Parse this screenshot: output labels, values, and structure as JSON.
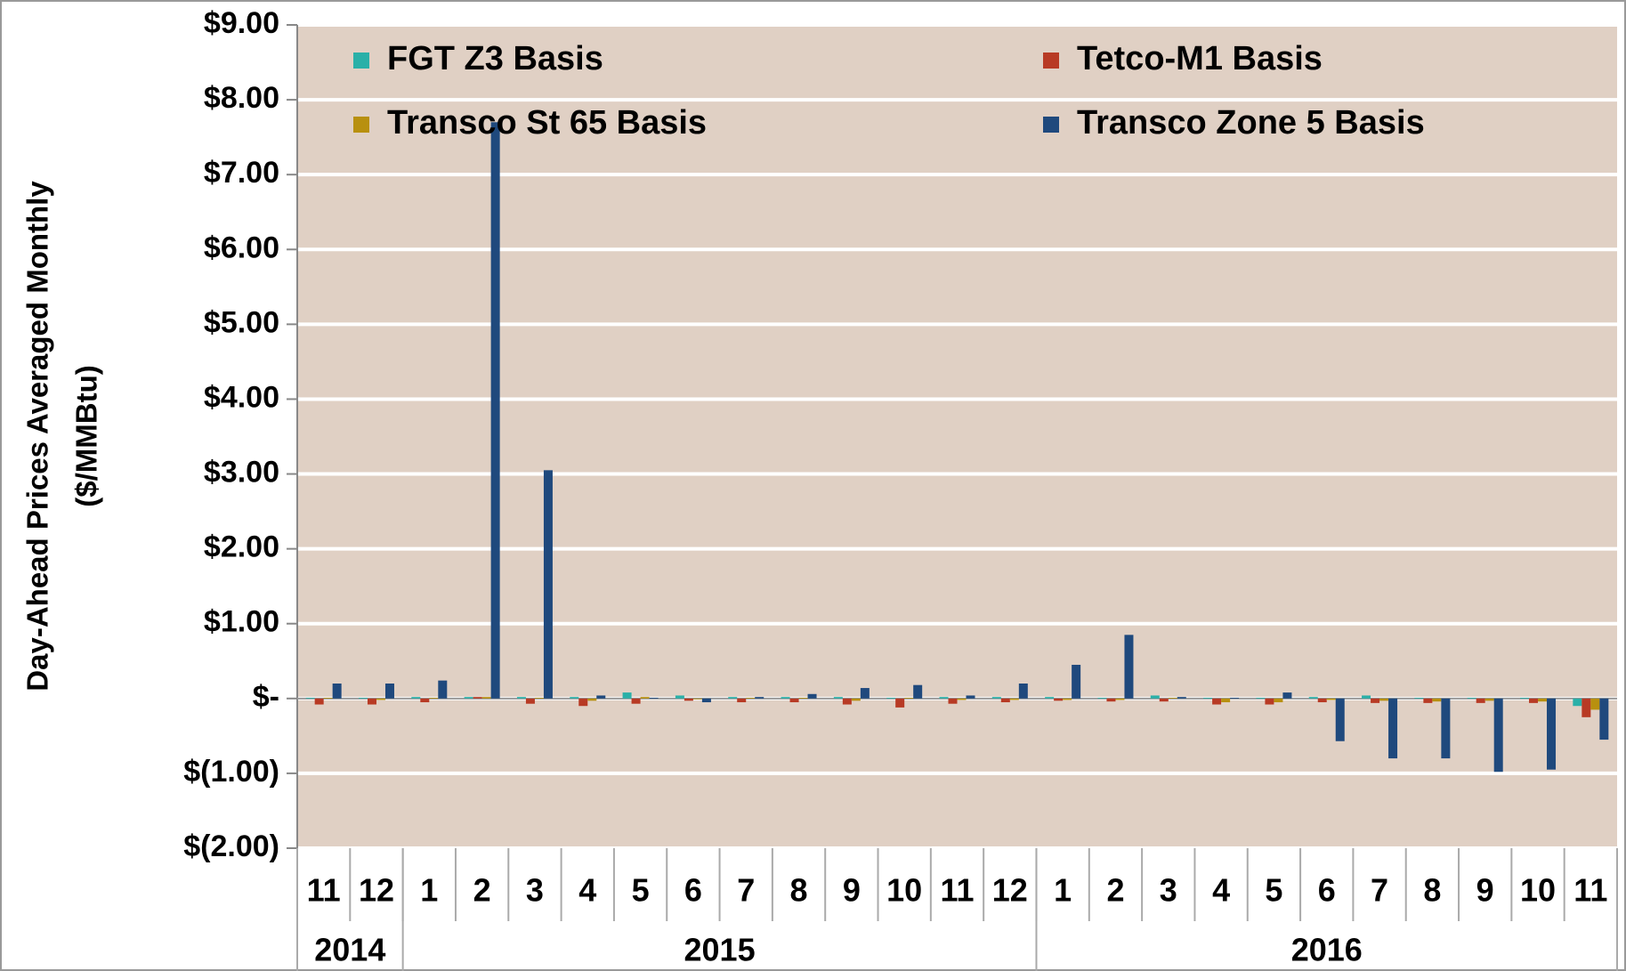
{
  "chart_data": {
    "type": "bar",
    "ylabel": [
      "Day-Ahead Prices Averaged Monthly",
      "($/MMBtu)"
    ],
    "categories": [
      "11",
      "12",
      "1",
      "2",
      "3",
      "4",
      "5",
      "6",
      "7",
      "8",
      "9",
      "10",
      "11",
      "12",
      "1",
      "2",
      "3",
      "4",
      "5",
      "6",
      "7",
      "8",
      "9",
      "10",
      "11"
    ],
    "groups": [
      {
        "label": "2014",
        "count": 2
      },
      {
        "label": "2015",
        "count": 12
      },
      {
        "label": "2016",
        "count": 11
      }
    ],
    "series": [
      {
        "name": "FGT Z3 Basis",
        "color": "#2ab0a8",
        "values": [
          0.01,
          0.01,
          0.02,
          0.02,
          0.02,
          0.02,
          0.08,
          0.04,
          0.02,
          0.02,
          0.02,
          0.01,
          0.02,
          0.02,
          0.02,
          0.01,
          0.04,
          0.01,
          0.01,
          0.02,
          0.04,
          0.01,
          0.01,
          0.01,
          -0.1
        ]
      },
      {
        "name": "Tetco-M1 Basis",
        "color": "#b83a24",
        "values": [
          -0.08,
          -0.08,
          -0.05,
          0.02,
          -0.07,
          -0.1,
          -0.07,
          -0.03,
          -0.05,
          -0.05,
          -0.08,
          -0.12,
          -0.07,
          -0.05,
          -0.03,
          -0.04,
          -0.04,
          -0.08,
          -0.08,
          -0.05,
          -0.06,
          -0.06,
          -0.06,
          -0.06,
          -0.25
        ]
      },
      {
        "name": "Transco St 65 Basis",
        "color": "#b8900f",
        "values": [
          0.01,
          -0.02,
          0.01,
          0.02,
          0.01,
          -0.03,
          0.02,
          -0.01,
          0.01,
          0.01,
          -0.03,
          0.01,
          -0.02,
          -0.02,
          -0.02,
          -0.02,
          0.01,
          -0.05,
          -0.05,
          -0.02,
          -0.03,
          -0.04,
          -0.03,
          -0.04,
          -0.15
        ]
      },
      {
        "name": "Transco Zone 5 Basis",
        "color": "#1f497d",
        "values": [
          0.2,
          0.2,
          0.24,
          7.7,
          3.05,
          0.04,
          0.01,
          -0.05,
          0.02,
          0.06,
          0.14,
          0.18,
          0.04,
          0.2,
          0.45,
          0.85,
          0.02,
          0.01,
          0.08,
          -0.57,
          -0.8,
          -0.8,
          -0.98,
          -0.95,
          -0.55
        ]
      }
    ],
    "ylim": [
      -2,
      9
    ],
    "yticks": [
      {
        "value": 9,
        "label": "$9.00"
      },
      {
        "value": 8,
        "label": "$8.00"
      },
      {
        "value": 7,
        "label": "$7.00"
      },
      {
        "value": 6,
        "label": "$6.00"
      },
      {
        "value": 5,
        "label": "$5.00"
      },
      {
        "value": 4,
        "label": "$4.00"
      },
      {
        "value": 3,
        "label": "$3.00"
      },
      {
        "value": 2,
        "label": "$2.00"
      },
      {
        "value": 1,
        "label": "$1.00"
      },
      {
        "value": 0,
        "label": "$-"
      },
      {
        "value": -1,
        "label": "$(1.00)"
      },
      {
        "value": -2,
        "label": "$(2.00)"
      }
    ],
    "grid": true,
    "background": "#e0d0c4"
  }
}
